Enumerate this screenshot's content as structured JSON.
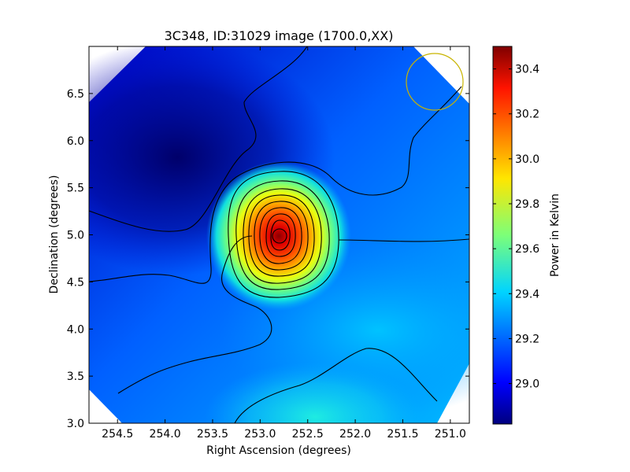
{
  "chart_data": {
    "type": "heatmap",
    "title": "3C348, ID:31029 image (1700.0,XX)",
    "xlabel": "Right Ascension (degrees)",
    "ylabel": "Declination (degrees)",
    "xlim": [
      254.8,
      250.8
    ],
    "ylim": [
      3.0,
      7.0
    ],
    "x_ticks": [
      254.5,
      254.0,
      253.5,
      253.0,
      252.5,
      252.0,
      251.5,
      251.0
    ],
    "x_tick_labels": [
      "254.5",
      "254.0",
      "253.5",
      "253.0",
      "252.5",
      "252.0",
      "251.5",
      "251.0"
    ],
    "y_ticks": [
      3.0,
      3.5,
      4.0,
      4.5,
      5.0,
      5.5,
      6.0,
      6.5
    ],
    "y_tick_labels": [
      "3.0",
      "3.5",
      "4.0",
      "4.5",
      "5.0",
      "5.5",
      "6.0",
      "6.5"
    ],
    "colorbar": {
      "label": "Power in Kelvin",
      "range": [
        28.82,
        30.5
      ],
      "ticks": [
        29.0,
        29.2,
        29.4,
        29.6,
        29.8,
        30.0,
        30.2,
        30.4
      ],
      "tick_labels": [
        "29.0",
        "29.2",
        "29.4",
        "29.6",
        "29.8",
        "30.0",
        "30.2",
        "30.4"
      ],
      "colormap": "jet"
    },
    "peak": {
      "ra": 252.78,
      "dec": 4.98,
      "value": 30.45
    },
    "beam_circle": {
      "ra": 251.12,
      "dec": 6.62,
      "radius_deg": 0.3,
      "color": "#c8b400"
    },
    "contour_color": "#000000"
  }
}
